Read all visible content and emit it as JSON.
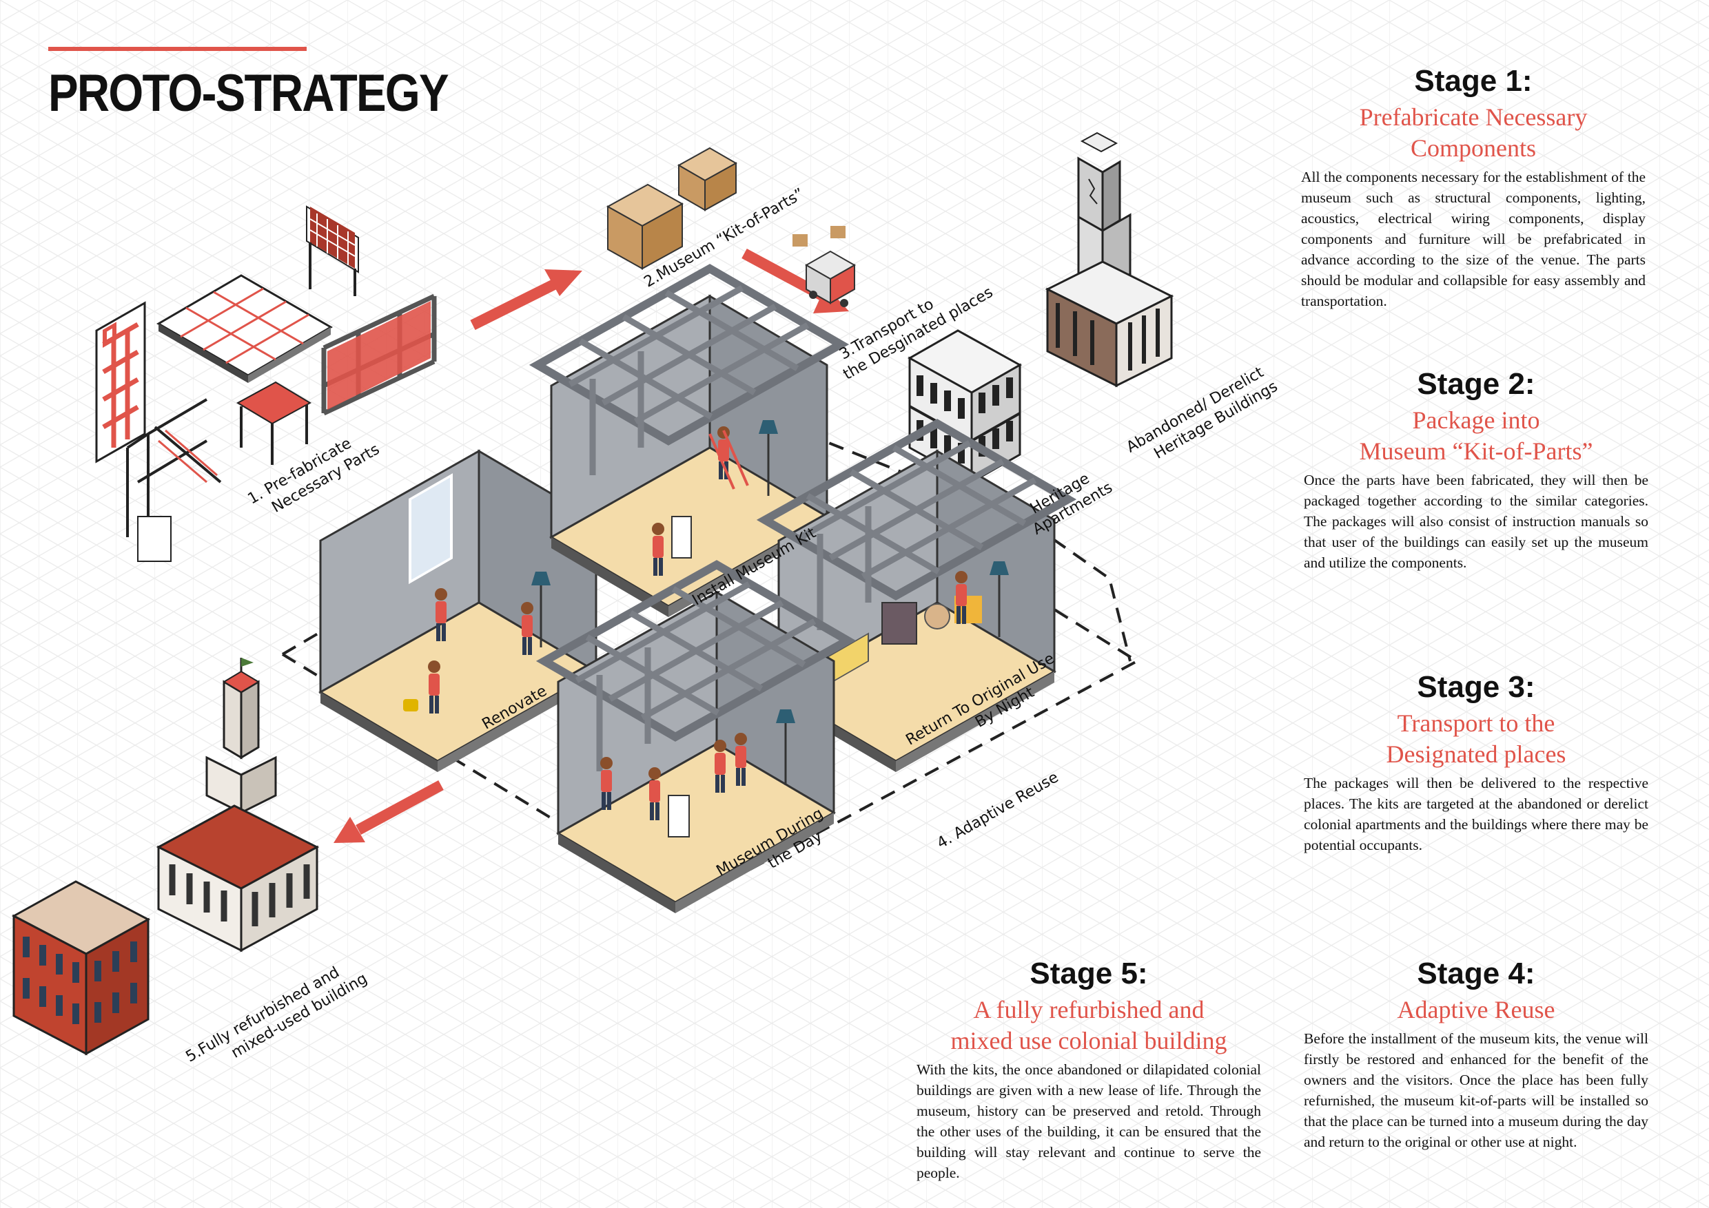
{
  "title": "PROTO-STRATEGY",
  "colors": {
    "accent": "#e0544a",
    "wall": "#a9adb3",
    "floor": "#f4dcaa",
    "frame": "#7b7f86",
    "brick": "#c0442f",
    "roof": "#b8432f"
  },
  "icons": [
    "pipe-frame-icon",
    "ceiling-grid-icon",
    "cardboard-box-icon",
    "delivery-truck-icon",
    "heritage-tower-icon",
    "apartment-building-icon",
    "room-section-icon",
    "refurbished-building-icon",
    "arrow-icon"
  ],
  "diagram": {
    "step1": [
      "1. Pre-fabricate",
      "Necessary Parts"
    ],
    "step2": "2.Museum “Kit-of-Parts”",
    "step3": [
      "3.Transport to",
      "the Desginated places"
    ],
    "abandoned": [
      "Abandoned/ Derelict",
      "Heritage Buildings"
    ],
    "apartments": [
      "Heritage",
      "Apartments"
    ],
    "install": "Install Museum Kit",
    "renovate": "Renovate",
    "return_use": [
      "Return To Original Use",
      "By Night"
    ],
    "museum_day": [
      "Museum During",
      "the Day"
    ],
    "adaptive": "4. Adaptive Reuse",
    "step5": [
      "5.Fully refurbished and",
      "mixed-used building"
    ]
  },
  "stages": [
    {
      "heading": "Stage 1:",
      "subtitle": [
        "Prefabricate Necessary",
        "Components"
      ],
      "body": "All the components necessary for the establishment of the museum such as structural components, lighting, acoustics, electrical wiring components, display components and furniture will be prefabricated in advance according to the size of the venue. The parts should be modular and collapsible for easy assembly and transportation."
    },
    {
      "heading": "Stage 2:",
      "subtitle": [
        "Package into",
        "Museum “Kit-of-Parts”"
      ],
      "body": "Once the parts have been fabricated, they will then be packaged together according to the similar categories. The packages will also consist of instruction manuals so that user of the buildings can easily set up the museum and utilize the components."
    },
    {
      "heading": "Stage 3:",
      "subtitle": [
        "Transport to the",
        "Designated places"
      ],
      "body": "The packages will then be delivered to the respective places. The kits are targeted at the abandoned or derelict colonial apartments and the buildings where there may be potential occupants."
    },
    {
      "heading": "Stage 4:",
      "subtitle": [
        "Adaptive Reuse"
      ],
      "body": "Before the installment of the museum kits, the venue will firstly be restored and enhanced for the benefit of the owners and the visitors. Once the place has been fully refurnished, the museum kit-of-parts will be installed so that the place can be turned into a museum during the day and return to the original or other use at night."
    },
    {
      "heading": "Stage 5:",
      "subtitle": [
        "A fully refurbished and",
        "mixed use colonial building"
      ],
      "body": "With the kits, the once abandoned or dilapidated colonial buildings are given with a new lease of life. Through the museum, history can be preserved and retold. Through the other uses of the building, it can be ensured that the building will stay relevant and continue to serve the people."
    }
  ]
}
